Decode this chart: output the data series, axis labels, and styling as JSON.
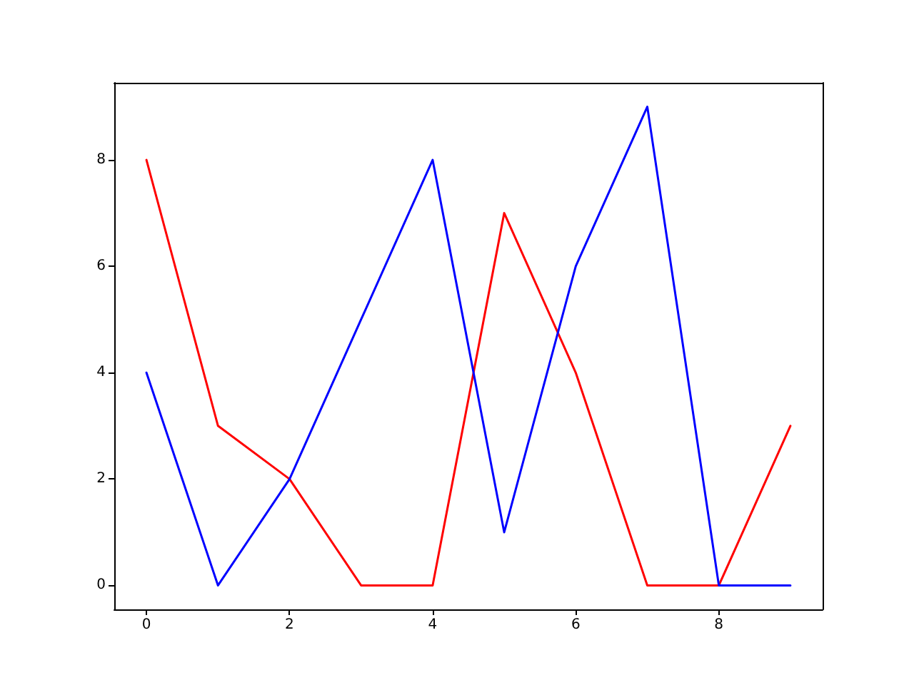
{
  "chart_data": {
    "type": "line",
    "x": [
      0,
      1,
      2,
      3,
      4,
      5,
      6,
      7,
      8,
      9
    ],
    "series": [
      {
        "color": "#ff0000",
        "values": [
          8,
          3,
          2,
          0,
          0,
          7,
          4,
          0,
          0,
          3
        ]
      },
      {
        "color": "#0000ff",
        "values": [
          4,
          0,
          2,
          5,
          8,
          1,
          6,
          9,
          0,
          0
        ]
      }
    ],
    "xlim": [
      -0.45,
      9.45
    ],
    "xticks": [
      0,
      2,
      4,
      6,
      8
    ],
    "ylim": [
      -0.45,
      9.45
    ],
    "yticks": [
      0,
      2,
      4,
      6,
      8
    ],
    "grid": false,
    "marker": "none",
    "line_style": "solid"
  }
}
